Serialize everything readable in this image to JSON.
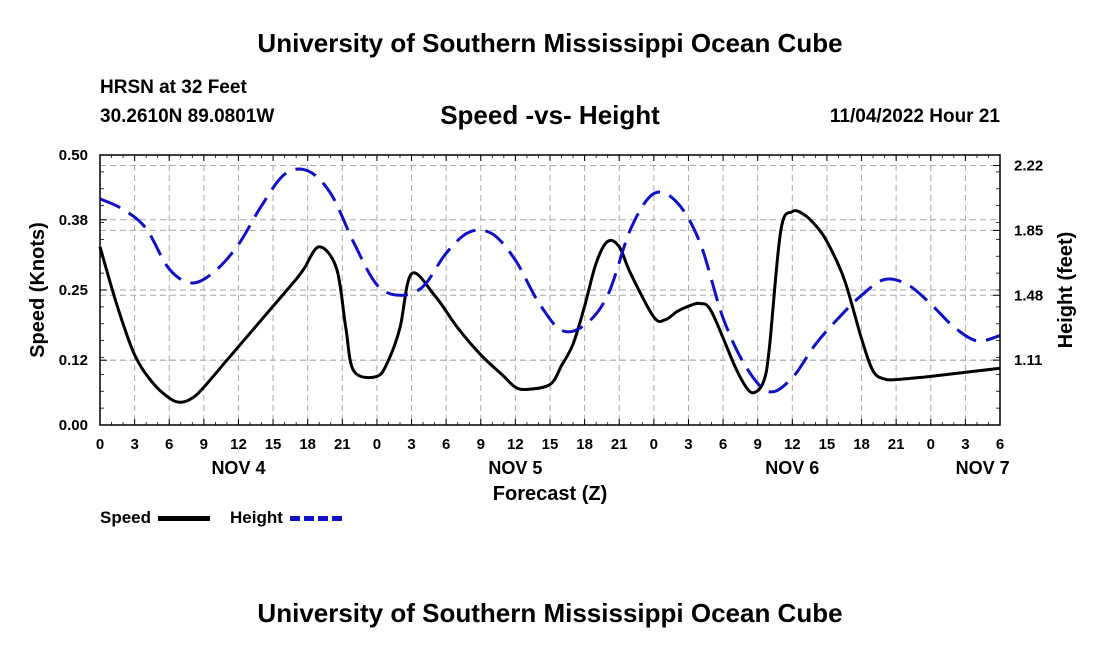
{
  "header": {
    "title": "University of Southern Mississippi Ocean Cube",
    "station": "HRSN at 32 Feet",
    "coords": "30.2610N  89.0801W",
    "subtitle": "Speed -vs- Height",
    "datetime": "11/04/2022 Hour 21"
  },
  "footer": {
    "title": "University of Southern Mississippi Ocean Cube"
  },
  "legend": {
    "speed_label": "Speed",
    "height_label": "Height"
  },
  "colors": {
    "speed": "#000000",
    "height": "#1010c8",
    "grid": "#aaaaaa"
  },
  "chart_data": {
    "type": "line",
    "title": "Speed -vs- Height",
    "xlabel": "Forecast (Z)",
    "ylabel": "Speed (Knots)",
    "y2label": "Height (feet)",
    "xlim": [
      0,
      78
    ],
    "ylim": [
      0,
      0.5
    ],
    "y2lim": [
      0.74,
      2.28
    ],
    "yticks": [
      0.0,
      0.12,
      0.25,
      0.38,
      0.5
    ],
    "ytick_labels": [
      "0.00",
      "0.12",
      "0.25",
      "0.38",
      "0.50"
    ],
    "y2ticks": [
      1.11,
      1.48,
      1.85,
      2.22
    ],
    "y2tick_labels": [
      "1.11",
      "1.48",
      "1.85",
      "2.22"
    ],
    "xticks": [
      0,
      3,
      6,
      9,
      12,
      15,
      18,
      21,
      24,
      27,
      30,
      33,
      36,
      39,
      42,
      45,
      48,
      51,
      54,
      57,
      60,
      63,
      66,
      69,
      72,
      75,
      78
    ],
    "xtick_labels": [
      "0",
      "3",
      "6",
      "9",
      "12",
      "15",
      "18",
      "21",
      "0",
      "3",
      "6",
      "9",
      "12",
      "15",
      "18",
      "21",
      "0",
      "3",
      "6",
      "9",
      "12",
      "15",
      "18",
      "21",
      "0",
      "3",
      "6"
    ],
    "day_labels": [
      {
        "x": 12,
        "label": "NOV 4"
      },
      {
        "x": 36,
        "label": "NOV 5"
      },
      {
        "x": 60,
        "label": "NOV 6"
      },
      {
        "x": 76.5,
        "label": "NOV 7"
      }
    ],
    "grid": true,
    "series": [
      {
        "name": "Speed",
        "axis": "left",
        "style": "solid",
        "x": [
          0,
          1.5,
          3,
          4.5,
          6,
          7,
          8,
          9,
          11,
          13,
          15,
          17,
          17.7,
          19,
          20.5,
          21.3,
          22,
          24,
          25,
          26,
          27,
          29,
          31,
          33,
          35,
          36,
          37,
          39,
          40,
          41,
          42,
          43,
          44,
          45,
          46,
          48,
          49,
          50,
          51,
          52,
          53,
          55,
          56,
          56.7,
          57.5,
          58,
          59,
          60,
          61,
          62,
          63,
          64.5,
          66,
          67,
          68,
          69,
          70,
          71,
          72,
          78
        ],
        "y": [
          0.33,
          0.22,
          0.13,
          0.08,
          0.05,
          0.042,
          0.05,
          0.07,
          0.12,
          0.17,
          0.22,
          0.27,
          0.29,
          0.33,
          0.29,
          0.18,
          0.1,
          0.09,
          0.12,
          0.18,
          0.28,
          0.24,
          0.18,
          0.13,
          0.09,
          0.07,
          0.066,
          0.075,
          0.11,
          0.15,
          0.22,
          0.3,
          0.34,
          0.33,
          0.28,
          0.2,
          0.195,
          0.21,
          0.22,
          0.225,
          0.21,
          0.11,
          0.07,
          0.06,
          0.08,
          0.14,
          0.36,
          0.395,
          0.39,
          0.37,
          0.34,
          0.27,
          0.16,
          0.1,
          0.085,
          0.084,
          0.086,
          0.088,
          0.09,
          0.105
        ]
      },
      {
        "name": "Height",
        "axis": "right",
        "style": "dashed",
        "x": [
          0,
          2,
          4,
          6,
          8,
          10,
          12,
          14,
          16,
          18,
          20,
          22,
          24,
          26,
          28,
          30,
          32,
          34,
          36,
          38,
          40,
          42,
          44,
          46,
          48,
          50,
          52,
          54,
          56,
          58,
          60,
          62,
          64,
          66,
          68,
          70,
          72,
          74,
          76,
          78
        ],
        "y": [
          2.03,
          1.97,
          1.86,
          1.63,
          1.55,
          1.62,
          1.77,
          1.99,
          2.17,
          2.19,
          2.06,
          1.78,
          1.54,
          1.48,
          1.53,
          1.72,
          1.84,
          1.83,
          1.68,
          1.44,
          1.28,
          1.31,
          1.48,
          1.86,
          2.06,
          2.01,
          1.78,
          1.35,
          1.07,
          0.93,
          1.01,
          1.2,
          1.35,
          1.48,
          1.57,
          1.54,
          1.43,
          1.3,
          1.22,
          1.25
        ]
      }
    ]
  }
}
